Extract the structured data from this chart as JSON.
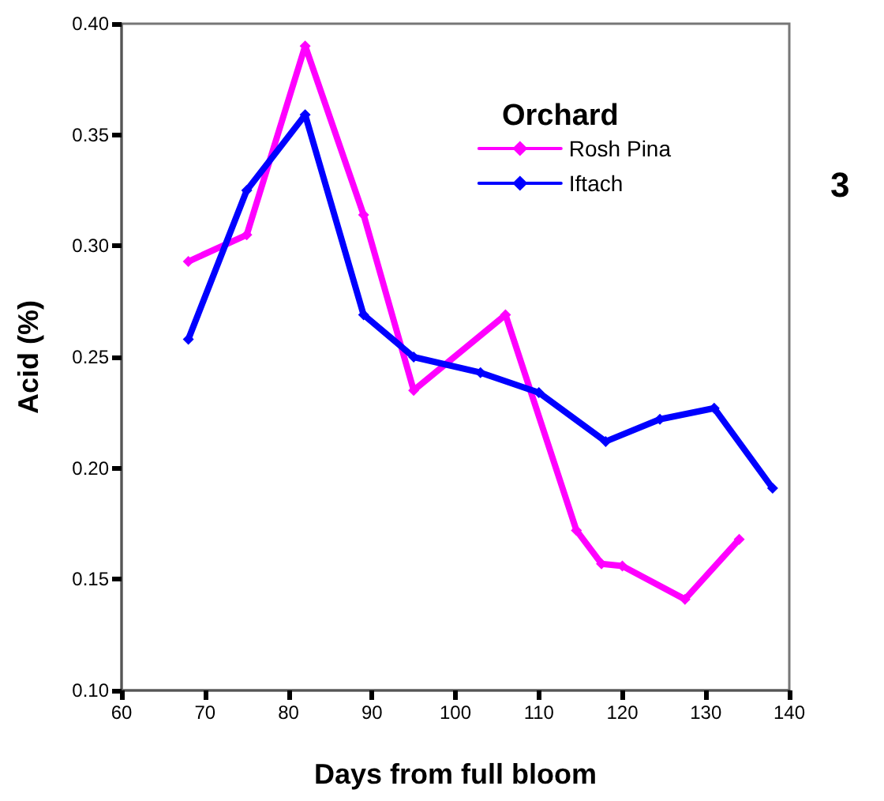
{
  "chart_data": {
    "type": "line",
    "xlabel": "Days from full bloom",
    "ylabel": "Acid (%)",
    "legend_title": "Orchard",
    "legend": "top right",
    "marker": "diamond",
    "line_style": "solid",
    "grid": false,
    "xlim": [
      60,
      140
    ],
    "xticks": [
      60,
      70,
      80,
      90,
      100,
      110,
      120,
      130,
      140
    ],
    "ylim": [
      0.1,
      0.4
    ],
    "yticks": [
      {
        "value": 0.1,
        "label": "0.10"
      },
      {
        "value": 0.15,
        "label": "0.15"
      },
      {
        "value": 0.2,
        "label": "0.20"
      },
      {
        "value": 0.25,
        "label": "0.25"
      },
      {
        "value": 0.3,
        "label": "0.30"
      },
      {
        "value": 0.35,
        "label": "0.35"
      },
      {
        "value": 0.4,
        "label": "0.40"
      }
    ],
    "series": [
      {
        "name": "Rosh Pina",
        "color": "#ff00ff",
        "x": [
          68,
          75,
          82,
          89,
          95,
          106,
          114.5,
          117.5,
          120,
          127.5,
          134
        ],
        "values": [
          0.293,
          0.305,
          0.39,
          0.314,
          0.235,
          0.269,
          0.172,
          0.157,
          0.156,
          0.141,
          0.168
        ]
      },
      {
        "name": "Iftach",
        "color": "#0000ff",
        "x": [
          68,
          75,
          82,
          89,
          95,
          103,
          110,
          118,
          124.5,
          131,
          138
        ],
        "values": [
          0.258,
          0.325,
          0.359,
          0.269,
          0.25,
          0.243,
          0.234,
          0.212,
          0.222,
          0.227,
          0.191
        ]
      }
    ],
    "annotations": [
      "3"
    ]
  }
}
